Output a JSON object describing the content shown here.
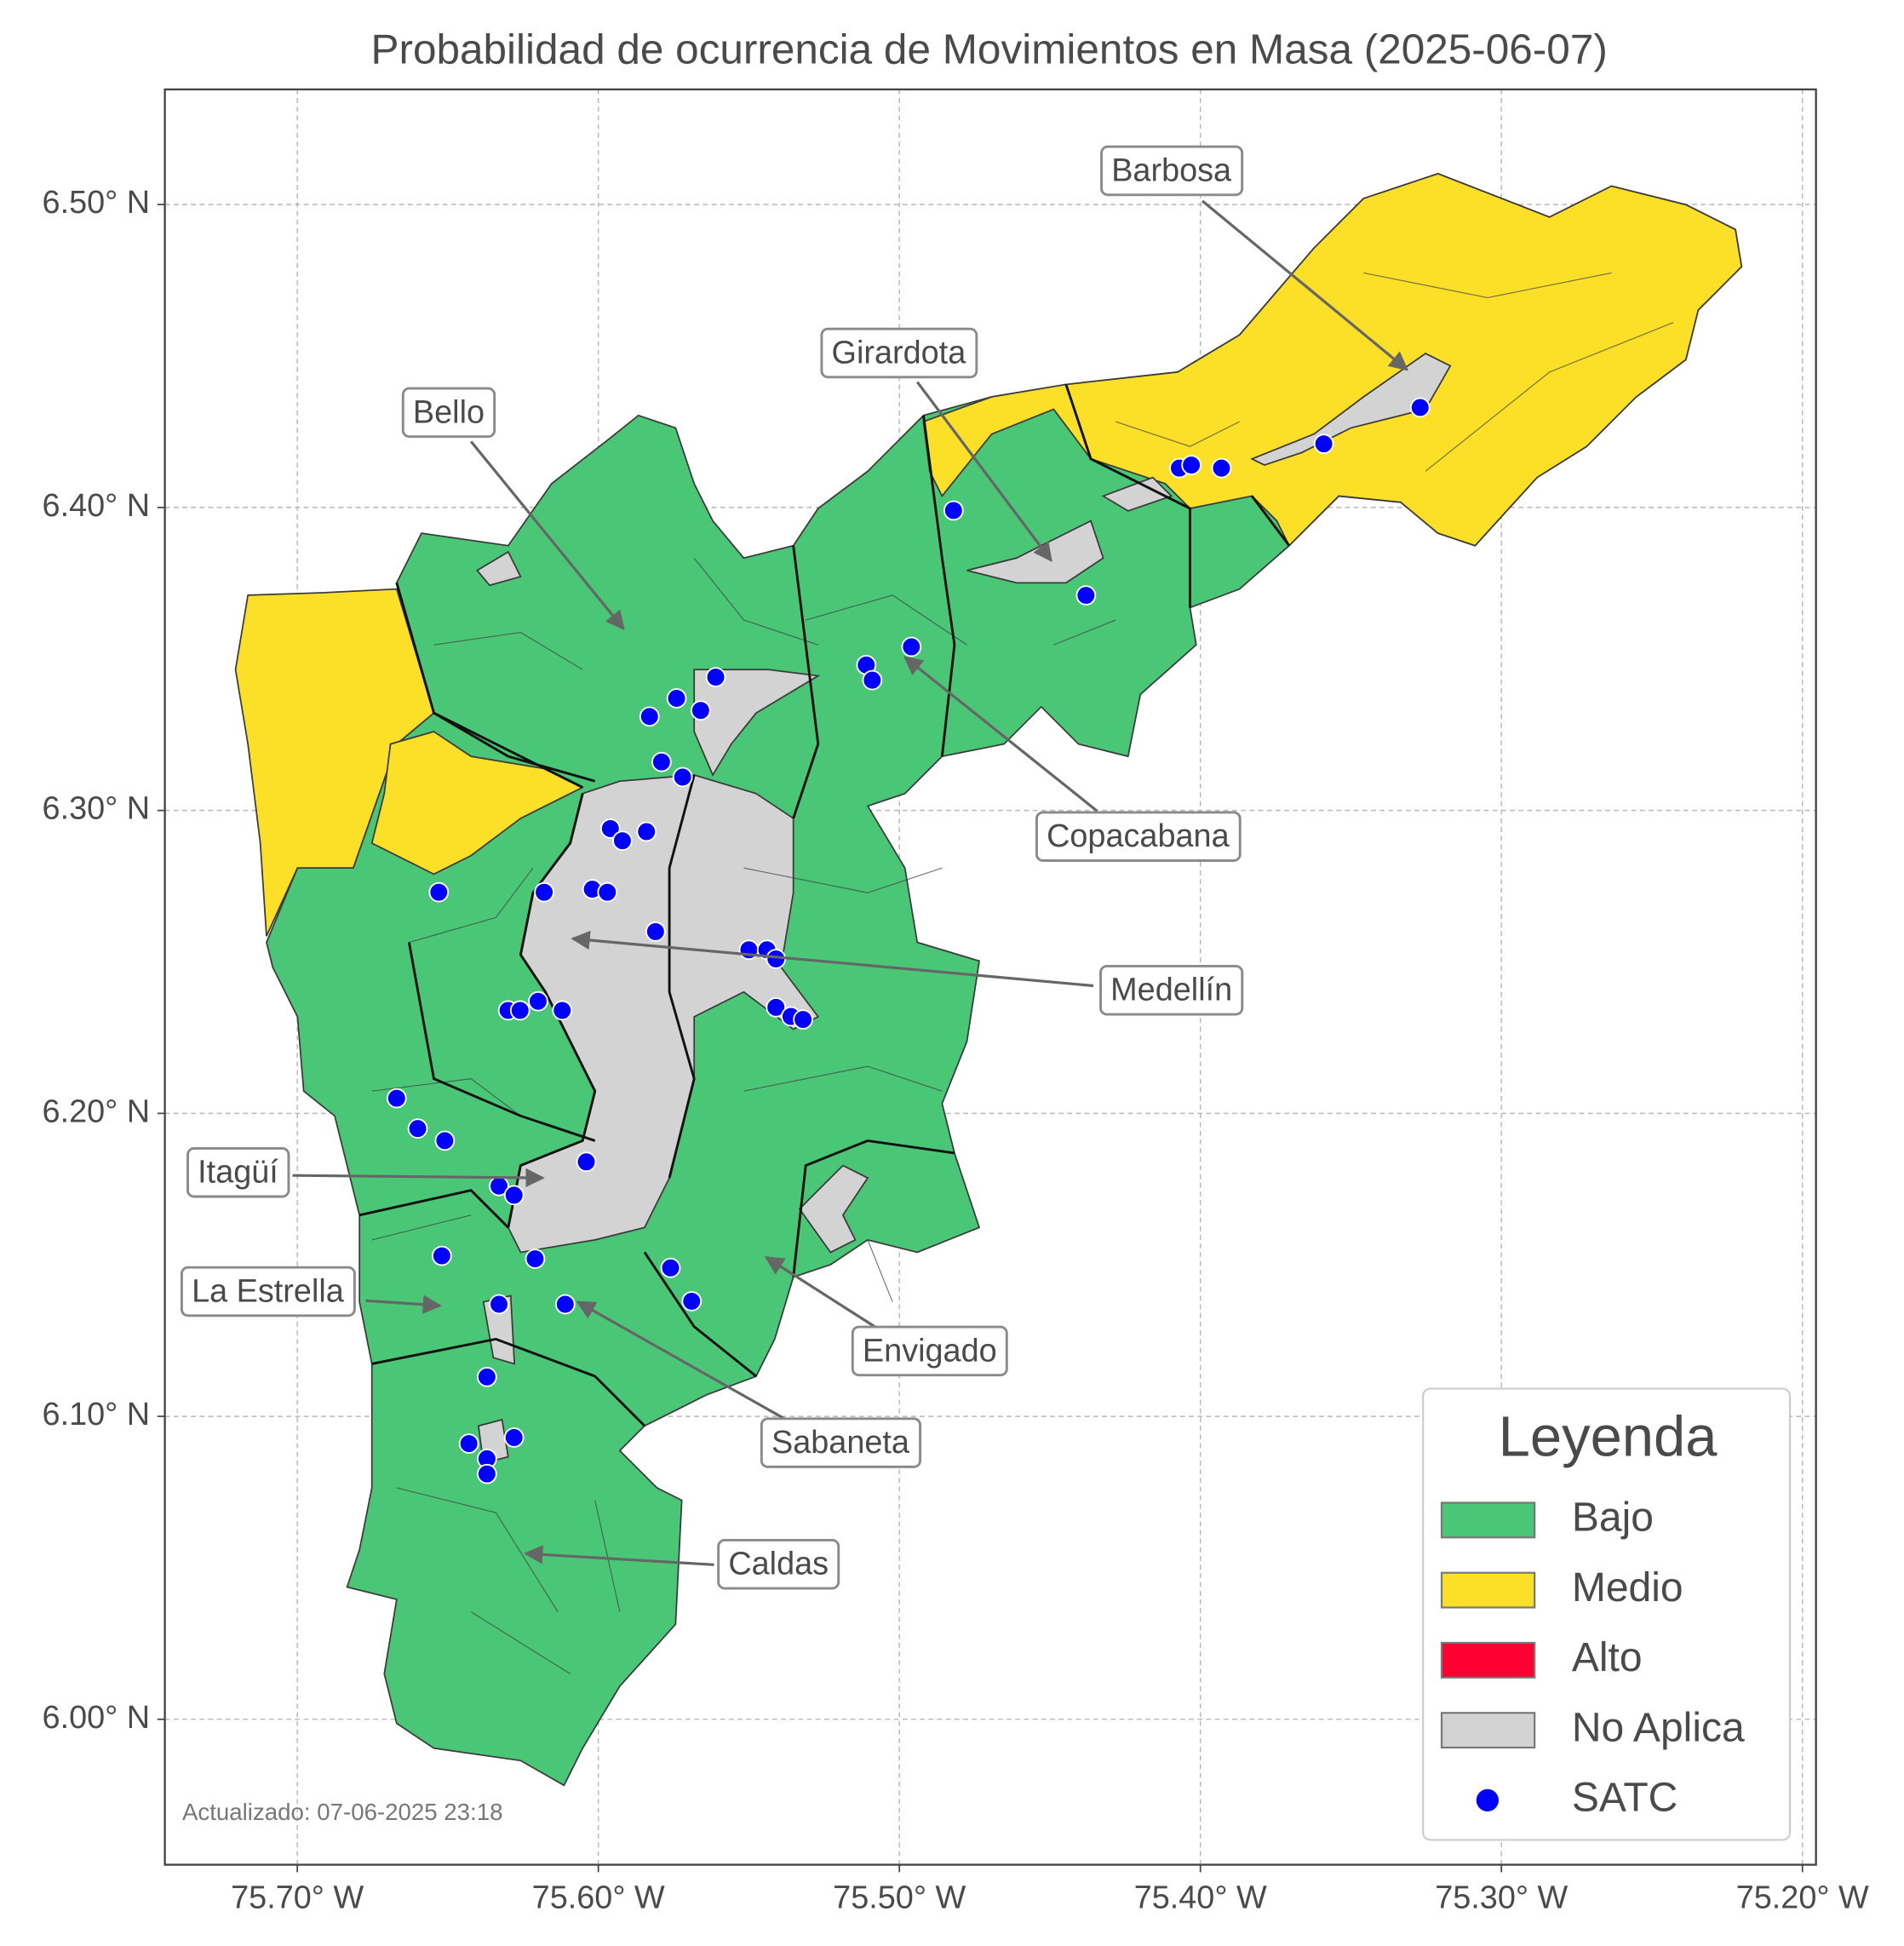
{
  "chart_data": {
    "type": "map",
    "title": "Probabilidad de ocurrencia de Movimientos en Masa (2025-06-07)",
    "xlim": [
      -75.744,
      -75.1955
    ],
    "ylim": [
      5.952,
      6.538
    ],
    "xticks": [
      {
        "value": -75.7,
        "label": "75.70° W"
      },
      {
        "value": -75.6,
        "label": "75.60° W"
      },
      {
        "value": -75.5,
        "label": "75.50° W"
      },
      {
        "value": -75.4,
        "label": "75.40° W"
      },
      {
        "value": -75.3,
        "label": "75.30° W"
      },
      {
        "value": -75.2,
        "label": "75.20° W"
      }
    ],
    "yticks": [
      {
        "value": 6.0,
        "label": "6.00° N"
      },
      {
        "value": 6.1,
        "label": "6.10° N"
      },
      {
        "value": 6.2,
        "label": "6.20° N"
      },
      {
        "value": 6.3,
        "label": "6.30° N"
      },
      {
        "value": 6.4,
        "label": "6.40° N"
      },
      {
        "value": 6.5,
        "label": "6.50° N"
      }
    ],
    "grid": true,
    "levels": [
      {
        "name": "Bajo",
        "color": "#4ac776"
      },
      {
        "name": "Medio",
        "color": "#fce028"
      },
      {
        "name": "Alto",
        "color": "#ff0033"
      },
      {
        "name": "No Aplica",
        "color": "#d3d3d3"
      }
    ],
    "series": [
      {
        "name": "SATC",
        "color": "#0000ff",
        "x": [
          -75.482,
          -75.407,
          -75.403,
          -75.393,
          -75.359,
          -75.327,
          -75.438,
          -75.496,
          -75.511,
          -75.509,
          -75.561,
          -75.574,
          -75.583,
          -75.566,
          -75.579,
          -75.572,
          -75.596,
          -75.592,
          -75.584,
          -75.653,
          -75.618,
          -75.602,
          -75.597,
          -75.581,
          -75.55,
          -75.544,
          -75.541,
          -75.541,
          -75.536,
          -75.532,
          -75.63,
          -75.626,
          -75.62,
          -75.612,
          -75.667,
          -75.66,
          -75.651,
          -75.604,
          -75.633,
          -75.628,
          -75.652,
          -75.621,
          -75.576,
          -75.569,
          -75.633,
          -75.611,
          -75.637,
          -75.643,
          -75.628,
          -75.637,
          -75.637
        ],
        "y": [
          6.399,
          6.413,
          6.414,
          6.413,
          6.421,
          6.433,
          6.371,
          6.354,
          6.348,
          6.343,
          6.344,
          6.337,
          6.331,
          6.333,
          6.316,
          6.311,
          6.294,
          6.29,
          6.293,
          6.273,
          6.273,
          6.274,
          6.273,
          6.26,
          6.254,
          6.254,
          6.251,
          6.235,
          6.232,
          6.231,
          6.234,
          6.234,
          6.237,
          6.234,
          6.205,
          6.195,
          6.191,
          6.184,
          6.176,
          6.173,
          6.153,
          6.152,
          6.149,
          6.138,
          6.137,
          6.137,
          6.113,
          6.091,
          6.093,
          6.086,
          6.081
        ]
      }
    ],
    "legend": {
      "title": "Leyenda",
      "corner": "lower right"
    },
    "annotations": [
      "Barbosa",
      "Girardota",
      "Bello",
      "Copacabana",
      "Medellín",
      "Itagüí",
      "La Estrella",
      "Envigado",
      "Sabaneta",
      "Caldas"
    ],
    "note": "Actualizado: 07-06-2025 23:18"
  }
}
